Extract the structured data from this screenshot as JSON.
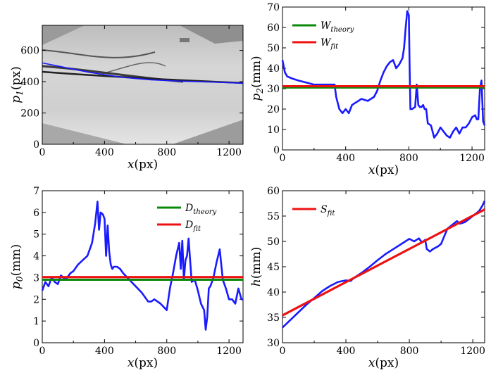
{
  "chart_data": [
    {
      "id": "p1",
      "type": "line",
      "background": "grayscale-image",
      "xlabel_main": "x",
      "xlabel_unit": "(px)",
      "ylabel_main": "p",
      "ylabel_sub": "1",
      "ylabel_unit": "(px)",
      "xlim": [
        0,
        1290
      ],
      "ylim": [
        0,
        760
      ],
      "xticks": [
        0,
        400,
        800,
        1200
      ],
      "yticks": [
        0,
        200,
        400,
        600
      ],
      "legend": [],
      "series": [
        {
          "color": "#1a1aff",
          "x": [
            0,
            100,
            200,
            300,
            400,
            500,
            600,
            700,
            800,
            900,
            1000,
            1100,
            1200,
            1290
          ],
          "y": [
            520,
            500,
            480,
            460,
            445,
            430,
            420,
            412,
            407,
            403,
            400,
            397,
            394,
            390
          ]
        }
      ]
    },
    {
      "id": "p2",
      "type": "line",
      "xlabel_main": "x",
      "xlabel_unit": "(px)",
      "ylabel_main": "p",
      "ylabel_sub": "2",
      "ylabel_unit": "(mm)",
      "xlim": [
        0,
        1280
      ],
      "ylim": [
        0,
        70
      ],
      "xticks": [
        0,
        400,
        800,
        1200
      ],
      "yticks": [
        0,
        10,
        20,
        30,
        40,
        50,
        60,
        70
      ],
      "legend_position": "top-left",
      "legend": [
        {
          "main": "W",
          "sub": "theory",
          "color": "#0a8a0a"
        },
        {
          "main": "W",
          "sub": "fit",
          "color": "#ee1111"
        }
      ],
      "hlines": [
        {
          "y": 30.6,
          "color": "#0a8a0a"
        },
        {
          "y": 31.2,
          "color": "#ee1111"
        }
      ],
      "series": [
        {
          "color": "#1a1aff",
          "x": [
            0,
            15,
            30,
            60,
            100,
            150,
            200,
            250,
            300,
            330,
            340,
            360,
            380,
            400,
            420,
            440,
            460,
            500,
            540,
            580,
            600,
            620,
            640,
            660,
            680,
            700,
            720,
            740,
            760,
            770,
            780,
            790,
            800,
            805,
            810,
            820,
            840,
            850,
            860,
            870,
            880,
            890,
            900,
            910,
            920,
            940,
            960,
            980,
            1000,
            1020,
            1040,
            1060,
            1080,
            1100,
            1120,
            1140,
            1160,
            1180,
            1200,
            1220,
            1230,
            1240,
            1250,
            1260,
            1270,
            1280
          ],
          "y": [
            44,
            38,
            36,
            35,
            34,
            33,
            32,
            32,
            32,
            32,
            26,
            20,
            18,
            20,
            18,
            22,
            23,
            25,
            24,
            26,
            29,
            34,
            38,
            41,
            43,
            44,
            40,
            42,
            45,
            50,
            60,
            68,
            66,
            40,
            20,
            20,
            21,
            32,
            22,
            21,
            21,
            22,
            20,
            20,
            13,
            12,
            6,
            8,
            11,
            9,
            7,
            6,
            9,
            11,
            8,
            11,
            11,
            13,
            16,
            17,
            15,
            15,
            30,
            34,
            14,
            12
          ]
        }
      ]
    },
    {
      "id": "p0",
      "type": "line",
      "xlabel_main": "x",
      "xlabel_unit": "(px)",
      "ylabel_main": "p",
      "ylabel_sub": "0",
      "ylabel_unit": "(mm)",
      "xlim": [
        0,
        1290
      ],
      "ylim": [
        0,
        7
      ],
      "xticks": [
        0,
        400,
        800,
        1200
      ],
      "yticks": [
        0,
        1,
        2,
        3,
        4,
        5,
        6,
        7
      ],
      "legend_position": "top-right",
      "legend": [
        {
          "main": "D",
          "sub": "theory",
          "color": "#0a8a0a"
        },
        {
          "main": "D",
          "sub": "fit",
          "color": "#ee1111"
        }
      ],
      "hlines": [
        {
          "y": 2.9,
          "color": "#0a8a0a"
        },
        {
          "y": 3.02,
          "color": "#ee1111"
        }
      ],
      "series": [
        {
          "color": "#1a1aff",
          "x": [
            0,
            20,
            40,
            60,
            80,
            100,
            120,
            150,
            180,
            200,
            230,
            260,
            290,
            320,
            340,
            355,
            365,
            375,
            390,
            400,
            410,
            420,
            430,
            440,
            450,
            460,
            480,
            500,
            520,
            560,
            600,
            640,
            680,
            700,
            720,
            760,
            800,
            820,
            840,
            860,
            880,
            890,
            900,
            910,
            920,
            930,
            940,
            960,
            980,
            1000,
            1020,
            1040,
            1050,
            1060,
            1070,
            1080,
            1100,
            1120,
            1140,
            1160,
            1180,
            1200,
            1220,
            1240,
            1260,
            1280,
            1290
          ],
          "y": [
            2.4,
            2.8,
            2.6,
            3.0,
            2.8,
            2.7,
            3.1,
            2.9,
            3.2,
            3.3,
            3.6,
            3.8,
            4.0,
            4.6,
            5.5,
            6.5,
            5.2,
            6.0,
            5.9,
            5.7,
            4.0,
            5.4,
            4.2,
            3.6,
            3.4,
            3.5,
            3.5,
            3.4,
            3.2,
            2.9,
            2.6,
            2.3,
            1.9,
            1.9,
            2.0,
            1.8,
            1.5,
            2.5,
            3.2,
            4.0,
            4.6,
            3.4,
            4.7,
            2.9,
            3.8,
            4.0,
            4.8,
            2.8,
            2.9,
            2.4,
            1.8,
            1.5,
            0.6,
            1.2,
            2.5,
            2.6,
            3.0,
            3.7,
            4.3,
            2.9,
            2.5,
            2.0,
            2.0,
            1.8,
            2.5,
            2.0,
            2.0
          ]
        }
      ]
    },
    {
      "id": "h",
      "type": "line",
      "xlabel_main": "x",
      "xlabel_unit": "(px)",
      "ylabel_main": "h",
      "ylabel_sub": "",
      "ylabel_unit": "(mm)",
      "xlim": [
        0,
        1275
      ],
      "ylim": [
        30,
        60
      ],
      "xticks": [
        0,
        400,
        800,
        1200
      ],
      "yticks": [
        30,
        35,
        40,
        45,
        50,
        55,
        60
      ],
      "legend_position": "top-left",
      "legend": [
        {
          "main": "S",
          "sub": "fit",
          "color": "#ee1111"
        }
      ],
      "fit_line": {
        "x": [
          0,
          1275
        ],
        "y": [
          35.4,
          56.3
        ],
        "color": "#ee1111"
      },
      "series": [
        {
          "color": "#1a1aff",
          "x": [
            0,
            50,
            100,
            150,
            200,
            250,
            300,
            350,
            400,
            430,
            450,
            500,
            550,
            600,
            650,
            700,
            750,
            800,
            830,
            860,
            880,
            900,
            910,
            930,
            950,
            980,
            1000,
            1020,
            1040,
            1060,
            1080,
            1100,
            1120,
            1150,
            1180,
            1200,
            1220,
            1240,
            1260,
            1275
          ],
          "y": [
            33.0,
            34.5,
            36.0,
            37.5,
            38.8,
            40.2,
            41.2,
            42.0,
            42.3,
            42.2,
            42.8,
            43.8,
            45.0,
            46.3,
            47.5,
            48.5,
            49.5,
            50.5,
            50.0,
            50.6,
            49.8,
            50.3,
            48.5,
            48.0,
            48.5,
            49.0,
            49.5,
            51.0,
            52.5,
            53.0,
            53.5,
            54.0,
            53.5,
            53.8,
            54.5,
            55.0,
            55.5,
            56.0,
            57.0,
            58.0
          ]
        }
      ]
    }
  ]
}
